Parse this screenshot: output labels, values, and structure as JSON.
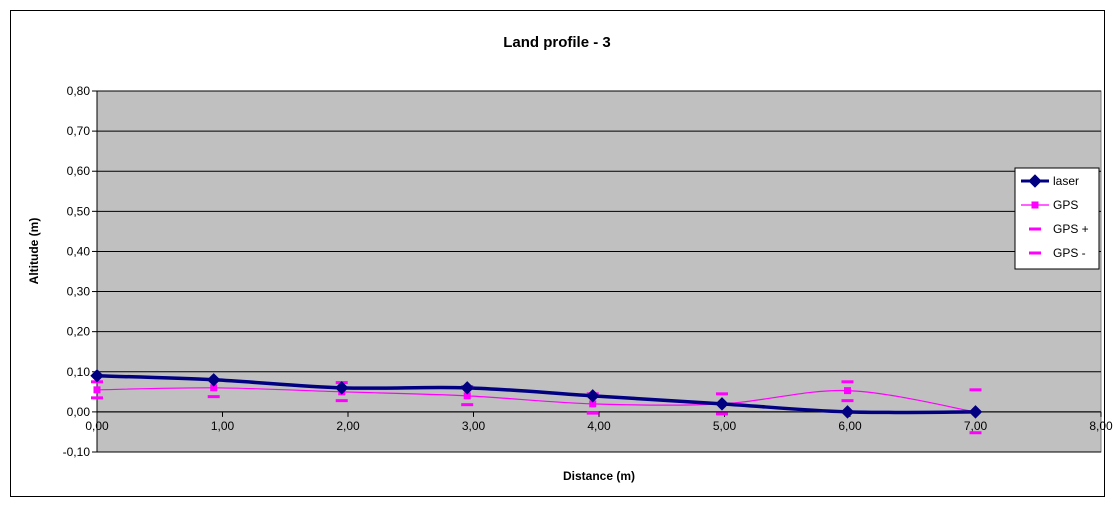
{
  "chart_data": {
    "type": "line",
    "title": "Land profile - 3",
    "xlabel": "Distance (m)",
    "ylabel": "Altitude (m)",
    "xlim": [
      0,
      8
    ],
    "ylim": [
      -0.1,
      0.8
    ],
    "x_ticks": [
      "0,00",
      "1,00",
      "2,00",
      "3,00",
      "4,00",
      "5,00",
      "6,00",
      "7,00",
      "8,00"
    ],
    "y_ticks": [
      "-0,10",
      "0,00",
      "0,10",
      "0,20",
      "0,30",
      "0,40",
      "0,50",
      "0,60",
      "0,70",
      "0,80"
    ],
    "grid": true,
    "legend_position": "right",
    "plot_background": "#c0c0c0",
    "series": [
      {
        "name": "laser",
        "color": "#000080",
        "marker": "diamond",
        "x": [
          0.0,
          0.93,
          1.95,
          2.95,
          3.95,
          4.98,
          5.98,
          7.0
        ],
        "y": [
          0.09,
          0.08,
          0.06,
          0.06,
          0.04,
          0.02,
          0.0,
          0.0
        ]
      },
      {
        "name": "GPS",
        "color": "#ff00ff",
        "marker": "square",
        "x": [
          0.0,
          0.93,
          1.95,
          2.95,
          3.95,
          4.98,
          5.98,
          7.0
        ],
        "y": [
          0.055,
          0.06,
          0.05,
          0.04,
          0.02,
          0.02,
          0.053,
          0.0
        ]
      },
      {
        "name": "GPS +",
        "color": "#ff00ff",
        "marker": "dash",
        "x": [
          0.0,
          0.93,
          1.95,
          2.95,
          3.95,
          4.98,
          5.98,
          7.0
        ],
        "y": [
          0.075,
          0.08,
          0.073,
          0.063,
          0.045,
          0.045,
          0.075,
          0.055
        ]
      },
      {
        "name": "GPS -",
        "color": "#ff00ff",
        "marker": "dash",
        "x": [
          0.0,
          0.93,
          1.95,
          2.95,
          3.95,
          4.98,
          5.98,
          7.0
        ],
        "y": [
          0.035,
          0.038,
          0.028,
          0.018,
          -0.003,
          -0.005,
          0.028,
          -0.052
        ]
      }
    ]
  }
}
